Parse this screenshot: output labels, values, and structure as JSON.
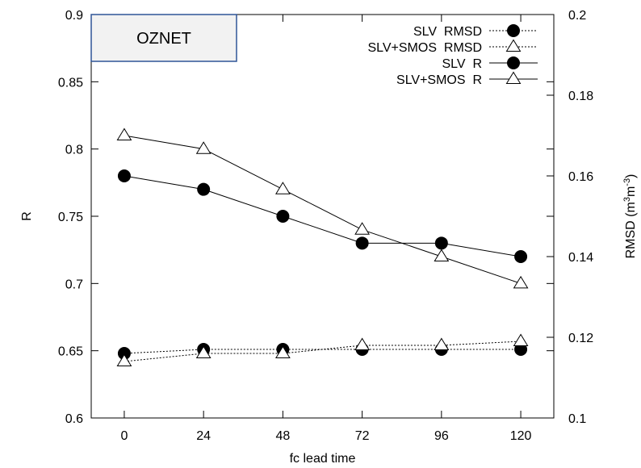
{
  "chart_data": {
    "type": "line",
    "title": "OZNET",
    "xlabel": "fc lead time",
    "ylabel": "R",
    "y2label": "RMSD (m³m⁻³)",
    "y2label_base": "RMSD (m",
    "y2label_sup1": "3",
    "y2label_mid": "m",
    "y2label_sup2": "-3",
    "y2label_end": ")",
    "x": [
      0,
      24,
      48,
      72,
      96,
      120
    ],
    "xlim": [
      -10,
      130
    ],
    "ylim": [
      0.6,
      0.9
    ],
    "y2lim": [
      0.1,
      0.2
    ],
    "xticks": [
      "0",
      "24",
      "48",
      "72",
      "96",
      "120"
    ],
    "yticks": [
      "0.6",
      "0.65",
      "0.7",
      "0.75",
      "0.8",
      "0.85",
      "0.9"
    ],
    "y2ticks": [
      "0.1",
      "0.12",
      "0.14",
      "0.16",
      "0.18",
      "0.2"
    ],
    "legend_position": "top-right",
    "grid": false,
    "series": [
      {
        "name": "SLV  RMSD",
        "axis": "right",
        "marker": "circle",
        "line": "dotted",
        "values": [
          0.116,
          0.117,
          0.117,
          0.117,
          0.117,
          0.117
        ]
      },
      {
        "name": "SLV+SMOS  RMSD",
        "axis": "right",
        "marker": "triangle",
        "line": "dotted",
        "values": [
          0.114,
          0.116,
          0.116,
          0.118,
          0.118,
          0.119
        ]
      },
      {
        "name": "SLV  R",
        "axis": "left",
        "marker": "circle",
        "line": "solid",
        "values": [
          0.78,
          0.77,
          0.75,
          0.73,
          0.73,
          0.72
        ]
      },
      {
        "name": "SLV+SMOS  R",
        "axis": "left",
        "marker": "triangle",
        "line": "solid",
        "values": [
          0.81,
          0.8,
          0.77,
          0.74,
          0.72,
          0.7
        ]
      }
    ]
  }
}
